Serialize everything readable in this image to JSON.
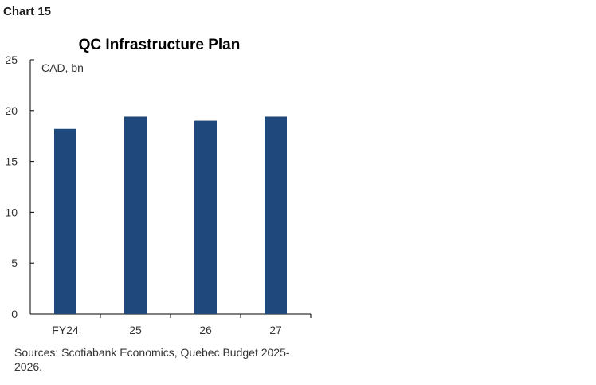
{
  "figure": {
    "label": "Chart 15",
    "source_note": "Sources: Scotiabank Economics, Quebec Budget 2025-2026."
  },
  "chart_data": {
    "type": "bar",
    "title": "QC Infrastructure Plan",
    "ylabel": "",
    "xlabel": "",
    "unit_label": "CAD, bn",
    "categories": [
      "FY24",
      "25",
      "26",
      "27"
    ],
    "values": [
      18.2,
      19.4,
      19.0,
      19.4
    ],
    "ylim": [
      0,
      25
    ],
    "yticks": [
      0,
      5,
      10,
      15,
      20,
      25
    ],
    "bar_color": "#1f497d",
    "grid": false,
    "legend": "none"
  }
}
